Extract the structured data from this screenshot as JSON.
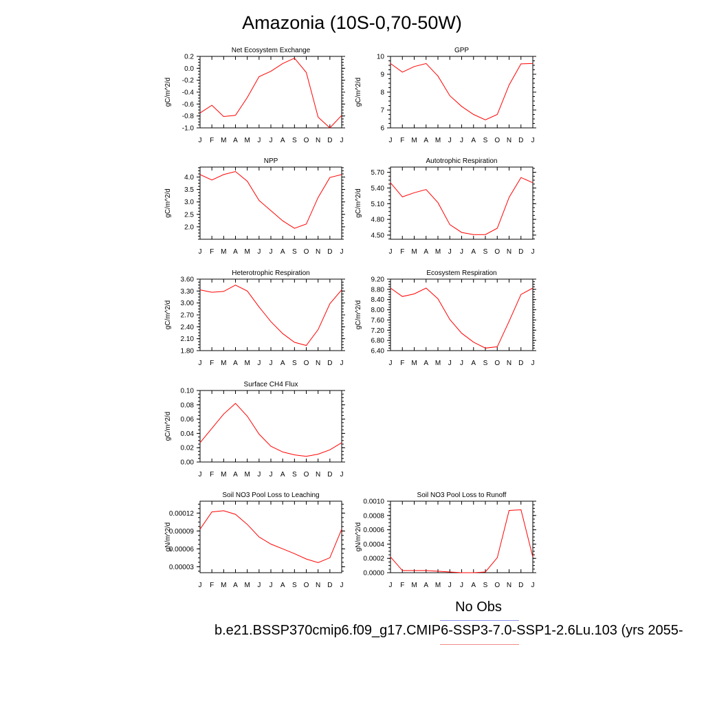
{
  "title": "Amazonia (10S-0,70-50W)",
  "legend": {
    "obs_label": "No Obs",
    "run_label": "b.e21.BSSP370cmip6.f09_g17.CMIP6-SSP3-7.0-SSP1-2.6Lu.103 (yrs 2055-",
    "obs_color": "#8a8fe8",
    "run_color": "#f08a8a"
  },
  "chart_data": [
    {
      "type": "line",
      "title": "Net Ecosystem Exchange",
      "ylabel": "gC/m^2/d",
      "x": [
        "J",
        "F",
        "M",
        "A",
        "M",
        "J",
        "J",
        "A",
        "S",
        "O",
        "N",
        "D",
        "J"
      ],
      "ylim": [
        -1.0,
        0.2
      ],
      "yticks": [
        -1.0,
        -0.8,
        -0.6,
        -0.4,
        -0.2,
        0.0,
        0.2
      ],
      "ytick_labels": [
        "-1.0",
        "-0.8",
        "-0.6",
        "-0.4",
        "-0.2",
        "0.0",
        "0.2"
      ],
      "values": [
        -0.75,
        -0.62,
        -0.81,
        -0.79,
        -0.49,
        -0.14,
        -0.05,
        0.08,
        0.17,
        -0.07,
        -0.82,
        -1.0,
        -0.79
      ],
      "line_color": "#ff0000"
    },
    {
      "type": "line",
      "title": "GPP",
      "ylabel": "gC/m^2/d",
      "x": [
        "J",
        "F",
        "M",
        "A",
        "M",
        "J",
        "J",
        "A",
        "S",
        "O",
        "N",
        "D",
        "J"
      ],
      "ylim": [
        6,
        10
      ],
      "yticks": [
        6,
        7,
        8,
        9,
        10
      ],
      "ytick_labels": [
        "6",
        "7",
        "8",
        "9",
        "10"
      ],
      "values": [
        9.6,
        9.12,
        9.43,
        9.6,
        8.9,
        7.8,
        7.2,
        6.75,
        6.45,
        6.75,
        8.4,
        9.58,
        9.6
      ],
      "line_color": "#ff0000"
    },
    {
      "type": "line",
      "title": "NPP",
      "ylabel": "gC/m^2/d",
      "x": [
        "J",
        "F",
        "M",
        "A",
        "M",
        "J",
        "J",
        "A",
        "S",
        "O",
        "N",
        "D",
        "J"
      ],
      "ylim": [
        1.5,
        4.4
      ],
      "yticks": [
        2.0,
        2.5,
        3.0,
        3.5,
        4.0
      ],
      "ytick_labels": [
        "2.0",
        "2.5",
        "3.0",
        "3.5",
        "4.0"
      ],
      "values": [
        4.1,
        3.88,
        4.1,
        4.22,
        3.83,
        3.06,
        2.65,
        2.24,
        1.94,
        2.11,
        3.18,
        3.98,
        4.1
      ],
      "line_color": "#ff0000"
    },
    {
      "type": "line",
      "title": "Autotrophic Respiration",
      "ylabel": "gC/m^2/d",
      "x": [
        "J",
        "F",
        "M",
        "A",
        "M",
        "J",
        "J",
        "A",
        "S",
        "O",
        "N",
        "D",
        "J"
      ],
      "ylim": [
        4.42,
        5.8
      ],
      "yticks": [
        4.5,
        4.8,
        5.1,
        5.4,
        5.7
      ],
      "ytick_labels": [
        "4.50",
        "4.80",
        "5.10",
        "5.40",
        "5.70"
      ],
      "values": [
        5.5,
        5.23,
        5.31,
        5.37,
        5.12,
        4.7,
        4.55,
        4.51,
        4.51,
        4.63,
        5.22,
        5.6,
        5.5
      ],
      "line_color": "#ff0000"
    },
    {
      "type": "line",
      "title": "Heterotrophic Respiration",
      "ylabel": "gC/m^2/d",
      "x": [
        "J",
        "F",
        "M",
        "A",
        "M",
        "J",
        "J",
        "A",
        "S",
        "O",
        "N",
        "D",
        "J"
      ],
      "ylim": [
        1.8,
        3.6
      ],
      "yticks": [
        1.8,
        2.1,
        2.4,
        2.7,
        3.0,
        3.3,
        3.6
      ],
      "ytick_labels": [
        "1.80",
        "2.10",
        "2.40",
        "2.70",
        "3.00",
        "3.30",
        "3.60"
      ],
      "values": [
        3.33,
        3.27,
        3.29,
        3.45,
        3.3,
        2.9,
        2.53,
        2.23,
        2.01,
        1.93,
        2.33,
        2.98,
        3.33
      ],
      "line_color": "#ff0000"
    },
    {
      "type": "line",
      "title": "Ecosystem Respiration",
      "ylabel": "gC/m^2/d",
      "x": [
        "J",
        "F",
        "M",
        "A",
        "M",
        "J",
        "J",
        "A",
        "S",
        "O",
        "N",
        "D",
        "J"
      ],
      "ylim": [
        6.4,
        9.2
      ],
      "yticks": [
        6.4,
        6.8,
        7.2,
        7.6,
        8.0,
        8.4,
        8.8,
        9.2
      ],
      "ytick_labels": [
        "6.40",
        "6.80",
        "7.20",
        "7.60",
        "8.00",
        "8.40",
        "8.80",
        "9.20"
      ],
      "values": [
        8.85,
        8.52,
        8.62,
        8.85,
        8.43,
        7.62,
        7.08,
        6.73,
        6.5,
        6.55,
        7.55,
        8.6,
        8.85
      ],
      "line_color": "#ff0000"
    },
    {
      "type": "line",
      "title": "Surface CH4 Flux",
      "ylabel": "gC/m^2/d",
      "x": [
        "J",
        "F",
        "M",
        "A",
        "M",
        "J",
        "J",
        "A",
        "S",
        "O",
        "N",
        "D",
        "J"
      ],
      "ylim": [
        0.0,
        0.1
      ],
      "yticks": [
        0.0,
        0.02,
        0.04,
        0.06,
        0.08,
        0.1
      ],
      "ytick_labels": [
        "0.00",
        "0.02",
        "0.04",
        "0.06",
        "0.08",
        "0.10"
      ],
      "values": [
        0.027,
        0.047,
        0.067,
        0.082,
        0.064,
        0.039,
        0.022,
        0.014,
        0.01,
        0.008,
        0.011,
        0.017,
        0.027
      ],
      "line_color": "#ff0000"
    },
    {
      "type": "line",
      "title": "Soil NO3 Pool Loss to Leaching",
      "ylabel": "gN/m^2/d",
      "x": [
        "J",
        "F",
        "M",
        "A",
        "M",
        "J",
        "J",
        "A",
        "S",
        "O",
        "N",
        "D",
        "J"
      ],
      "ylim": [
        2e-05,
        0.00014
      ],
      "yticks": [
        3e-05,
        6e-05,
        9e-05,
        0.00012
      ],
      "ytick_labels": [
        "0.00003",
        "0.00006",
        "0.00009",
        "0.00012"
      ],
      "values": [
        9.3e-05,
        0.000122,
        0.000124,
        0.000118,
        0.000101,
        8e-05,
        6.8e-05,
        6e-05,
        5.2e-05,
        4.3e-05,
        3.7e-05,
        4.5e-05,
        9.3e-05
      ],
      "line_color": "#ff0000"
    },
    {
      "type": "line",
      "title": "Soil NO3 Pool Loss to Runoff",
      "ylabel": "gN/m^2/d",
      "x": [
        "J",
        "F",
        "M",
        "A",
        "M",
        "J",
        "J",
        "A",
        "S",
        "O",
        "N",
        "D",
        "J"
      ],
      "ylim": [
        0.0,
        0.001
      ],
      "yticks": [
        0.0,
        0.0002,
        0.0004,
        0.0006,
        0.0008,
        0.001
      ],
      "ytick_labels": [
        "0.0000",
        "0.0002",
        "0.0004",
        "0.0006",
        "0.0008",
        "0.0010"
      ],
      "values": [
        0.00022,
        3e-05,
        3e-05,
        3e-05,
        2e-05,
        1e-05,
        0.0,
        0.0,
        1e-05,
        0.00021,
        0.00087,
        0.00088,
        0.00022
      ],
      "line_color": "#ff0000"
    }
  ]
}
